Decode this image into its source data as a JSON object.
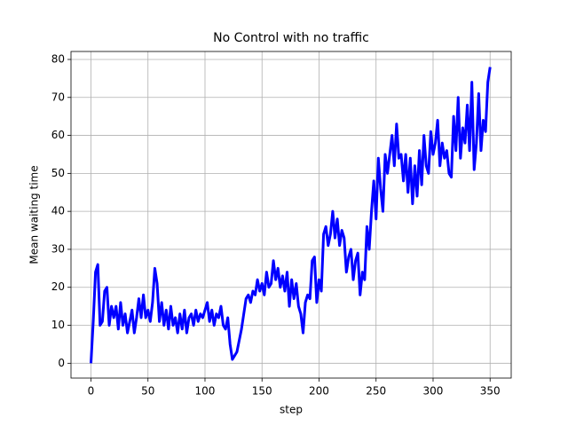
{
  "chart_data": {
    "type": "line",
    "title": "No Control with no traffic",
    "xlabel": "step",
    "ylabel": "Mean waiting time",
    "xlim": [
      -17.5,
      368.5
    ],
    "ylim": [
      -3.9,
      82.1
    ],
    "xticks": [
      0,
      50,
      100,
      150,
      200,
      250,
      300,
      350
    ],
    "yticks": [
      0,
      10,
      20,
      30,
      40,
      50,
      60,
      70,
      80
    ],
    "grid": true,
    "color": "#0000ff",
    "x": [
      0,
      2,
      4,
      6,
      8,
      10,
      12,
      14,
      16,
      18,
      20,
      22,
      24,
      26,
      28,
      30,
      32,
      34,
      36,
      38,
      40,
      42,
      44,
      46,
      48,
      50,
      52,
      54,
      56,
      58,
      60,
      62,
      64,
      66,
      68,
      70,
      72,
      74,
      76,
      78,
      80,
      82,
      84,
      86,
      88,
      90,
      92,
      94,
      96,
      98,
      100,
      102,
      104,
      106,
      108,
      110,
      112,
      114,
      116,
      118,
      120,
      122,
      124,
      126,
      128,
      130,
      132,
      134,
      136,
      138,
      140,
      142,
      144,
      146,
      148,
      150,
      152,
      154,
      156,
      158,
      160,
      162,
      164,
      166,
      168,
      170,
      172,
      174,
      176,
      178,
      180,
      182,
      184,
      186,
      188,
      190,
      192,
      194,
      196,
      198,
      200,
      202,
      204,
      206,
      208,
      210,
      212,
      214,
      216,
      218,
      220,
      222,
      224,
      226,
      228,
      230,
      232,
      234,
      236,
      238,
      240,
      242,
      244,
      246,
      248,
      250,
      252,
      254,
      256,
      258,
      260,
      262,
      264,
      266,
      268,
      270,
      272,
      274,
      276,
      278,
      280,
      282,
      284,
      286,
      288,
      290,
      292,
      294,
      296,
      298,
      300,
      302,
      304,
      306,
      308,
      310,
      312,
      314,
      316,
      318,
      320,
      322,
      324,
      326,
      328,
      330,
      332,
      334,
      336,
      338,
      340,
      342,
      344,
      346,
      348,
      350
    ],
    "values": [
      0,
      11,
      24,
      26,
      10,
      11,
      19,
      20,
      10,
      15,
      12,
      15,
      9,
      16,
      10,
      13,
      8,
      11,
      14,
      8,
      12,
      17,
      12,
      18,
      12,
      14,
      11,
      16,
      25,
      21,
      11,
      16,
      10,
      14,
      9,
      15,
      10,
      12,
      8,
      13,
      9,
      14,
      8,
      12,
      13,
      10,
      14,
      11,
      13,
      12,
      14,
      16,
      11,
      14,
      10,
      13,
      12,
      15,
      10,
      9,
      12,
      5,
      1,
      2,
      3,
      6,
      9,
      13,
      17,
      18,
      16,
      19,
      18,
      22,
      19,
      21,
      18,
      24,
      20,
      21,
      27,
      22,
      25,
      20,
      23,
      19,
      24,
      15,
      22,
      17,
      21,
      15,
      13,
      8,
      16,
      18,
      17,
      27,
      28,
      16,
      22,
      19,
      34,
      36,
      31,
      34,
      40,
      33,
      38,
      31,
      35,
      33,
      24,
      28,
      30,
      22,
      27,
      29,
      18,
      24,
      22,
      36,
      30,
      40,
      48,
      38,
      54,
      46,
      40,
      55,
      50,
      55,
      60,
      52,
      63,
      54,
      55,
      48,
      55,
      45,
      54,
      42,
      52,
      44,
      56,
      47,
      60,
      52,
      50,
      61,
      55,
      58,
      64,
      52,
      58,
      54,
      56,
      50,
      49,
      65,
      56,
      70,
      54,
      62,
      58,
      68,
      56,
      74,
      51,
      58,
      71,
      56,
      64,
      61,
      74,
      78
    ]
  }
}
